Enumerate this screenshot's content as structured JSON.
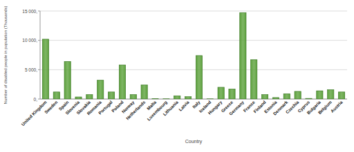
{
  "chart_data": {
    "type": "bar",
    "x_label": "Country",
    "y_label": "Number of disabled people in population (Thousands)",
    "categories": [
      "United Kingdom",
      "Sweden",
      "Spain",
      "Slovenia",
      "Slovakia",
      "Romania",
      "Portugal",
      "Poland",
      "Norway",
      "Netherlands",
      "Malta",
      "Luxembourg",
      "Lithuania",
      "Latvia",
      "Italy",
      "Iceland",
      "Hungary",
      "Greece",
      "Germany",
      "France",
      "Finland",
      "Estonia",
      "Denmark",
      "Czechia",
      "Cyprus",
      "Bulgaria",
      "Belgium",
      "Austria"
    ],
    "values": [
      10200,
      1200,
      6400,
      350,
      750,
      3200,
      1200,
      5800,
      750,
      2400,
      50,
      40,
      550,
      400,
      7400,
      30,
      2000,
      1700,
      14700,
      6700,
      750,
      250,
      900,
      1300,
      100,
      1400,
      1600,
      1200
    ],
    "color": "#5fa33f",
    "ylim": [
      0,
      15000
    ],
    "yticks": [
      {
        "value": 0,
        "label": "0,"
      },
      {
        "value": 5000,
        "label": "5 000,"
      },
      {
        "value": 10000,
        "label": "10 000,"
      },
      {
        "value": 15000,
        "label": "15 000,"
      }
    ],
    "grid": true
  }
}
